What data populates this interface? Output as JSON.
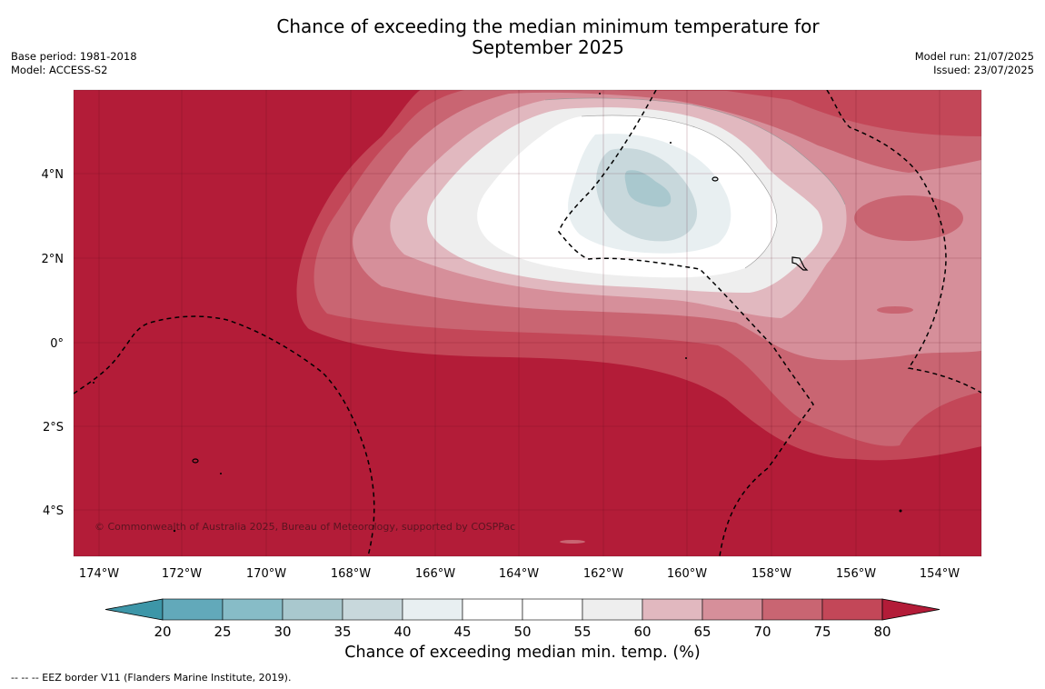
{
  "header": {
    "title_line1": "Chance of exceeding the median minimum temperature for",
    "title_line2": "September 2025",
    "base_period": "Base period: 1981-2018",
    "model": "Model: ACCESS-S2",
    "model_run": "Model run: 21/07/2025",
    "issued": "Issued: 23/07/2025"
  },
  "map": {
    "lat_labels": [
      "4°N",
      "2°N",
      "0°",
      "2°S",
      "4°S"
    ],
    "lon_labels": [
      "174°W",
      "172°W",
      "170°W",
      "168°W",
      "166°W",
      "164°W",
      "162°W",
      "160°W",
      "158°W",
      "156°W",
      "154°W"
    ],
    "copyright": "© Commonwealth of Australia 2025, Bureau of Meteorology, supported by COSPPac",
    "background_color": "#b31c38"
  },
  "colorbar": {
    "ticks": [
      "20",
      "25",
      "30",
      "35",
      "40",
      "45",
      "50",
      "55",
      "60",
      "65",
      "70",
      "75",
      "80"
    ],
    "colors": [
      "#3d96a8",
      "#62a9ba",
      "#87bcc7",
      "#a9c8ce",
      "#c8d8dc",
      "#e8eff1",
      "#ffffff",
      "#ffffff",
      "#eeeeee",
      "#e1b8bf",
      "#d68f9a",
      "#c96572",
      "#c34758",
      "#b31c38"
    ],
    "title": "Chance of exceeding median min. temp. (%)"
  },
  "footer": {
    "legend_note": "--  --  -- EEZ border V11 (Flanders Marine Institute, 2019)."
  }
}
